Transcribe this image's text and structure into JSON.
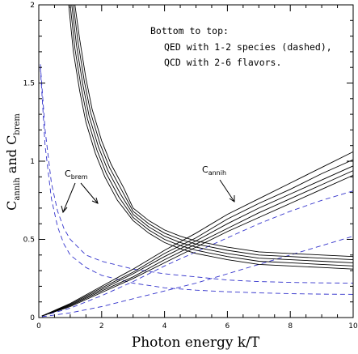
{
  "chart_data": {
    "type": "line",
    "xlabel": "Photon energy k/T",
    "ylabel": {
      "base": "C",
      "sub1": "annih",
      "mid": " and C",
      "sub2": "brem"
    },
    "xlim": [
      0,
      10
    ],
    "ylim": [
      0,
      2
    ],
    "xticks": [
      0,
      2,
      4,
      6,
      8,
      10
    ],
    "yticks": [
      0,
      0.5,
      1,
      1.5,
      2
    ],
    "xtick_labels": [
      "0",
      "2",
      "4",
      "6",
      "8",
      "10"
    ],
    "ytick_labels": [
      "0",
      "0.5",
      "1",
      "1.5",
      "2"
    ],
    "grid": false,
    "notes": [
      "Bottom to top:",
      "QED with 1-2 species (dashed),",
      "QCD with 2-6 flavors."
    ],
    "annotations": [
      {
        "base": "C",
        "sub": "brem",
        "target": "brem curves"
      },
      {
        "base": "C",
        "sub": "annih",
        "target": "annih curves"
      }
    ],
    "colors": {
      "qcd": "#000000",
      "qed": "#3333cc",
      "axes": "#000000"
    },
    "series": [
      {
        "group": "QED brem",
        "style": "dashed",
        "x": [
          0.05,
          0.2,
          0.4,
          0.6,
          0.8,
          1,
          1.5,
          2,
          3,
          4,
          5,
          6,
          7,
          8,
          9,
          10
        ],
        "y": [
          1.62,
          1.2,
          0.86,
          0.68,
          0.57,
          0.5,
          0.4,
          0.36,
          0.31,
          0.28,
          0.26,
          0.24,
          0.23,
          0.225,
          0.222,
          0.22
        ]
      },
      {
        "group": "QED brem",
        "style": "dashed",
        "x": [
          0.05,
          0.2,
          0.4,
          0.6,
          0.8,
          1,
          1.5,
          2,
          3,
          4,
          5,
          6,
          7,
          8,
          9,
          10
        ],
        "y": [
          1.6,
          1.1,
          0.76,
          0.58,
          0.47,
          0.4,
          0.32,
          0.27,
          0.22,
          0.19,
          0.175,
          0.165,
          0.158,
          0.153,
          0.15,
          0.148
        ]
      },
      {
        "group": "QED annih",
        "style": "dashed",
        "x": [
          0.1,
          1,
          2,
          3,
          4,
          5,
          6,
          7,
          8,
          9,
          10
        ],
        "y": [
          0.005,
          0.03,
          0.07,
          0.12,
          0.17,
          0.22,
          0.28,
          0.34,
          0.4,
          0.46,
          0.52
        ]
      },
      {
        "group": "QED annih",
        "style": "dashed",
        "x": [
          0.1,
          1,
          2,
          3,
          4,
          5,
          6,
          7,
          8,
          9,
          10
        ],
        "y": [
          0.01,
          0.06,
          0.14,
          0.23,
          0.33,
          0.42,
          0.51,
          0.6,
          0.68,
          0.75,
          0.81
        ]
      },
      {
        "group": "QCD brem",
        "style": "solid",
        "x": [
          0.95,
          1.1,
          1.3,
          1.5,
          1.8,
          2.1,
          2.5,
          3,
          3.5,
          4,
          4.5,
          5,
          6,
          7,
          8,
          9,
          10
        ],
        "y": [
          2,
          1.7,
          1.45,
          1.25,
          1.05,
          0.9,
          0.75,
          0.62,
          0.54,
          0.48,
          0.44,
          0.41,
          0.37,
          0.34,
          0.33,
          0.32,
          0.31
        ]
      },
      {
        "group": "QCD brem",
        "style": "solid",
        "x": [
          1.0,
          1.15,
          1.35,
          1.55,
          1.85,
          2.15,
          2.55,
          3,
          3.5,
          4,
          4.5,
          5,
          6,
          7,
          8,
          9,
          10
        ],
        "y": [
          2,
          1.72,
          1.47,
          1.27,
          1.07,
          0.92,
          0.77,
          0.64,
          0.56,
          0.5,
          0.46,
          0.43,
          0.39,
          0.36,
          0.35,
          0.34,
          0.33
        ]
      },
      {
        "group": "QCD brem",
        "style": "solid",
        "x": [
          1.05,
          1.2,
          1.4,
          1.6,
          1.9,
          2.2,
          2.6,
          3,
          3.5,
          4,
          4.5,
          5,
          6,
          7,
          8,
          9,
          10
        ],
        "y": [
          2,
          1.74,
          1.49,
          1.29,
          1.09,
          0.94,
          0.79,
          0.66,
          0.58,
          0.52,
          0.48,
          0.45,
          0.41,
          0.38,
          0.37,
          0.36,
          0.35
        ]
      },
      {
        "group": "QCD brem",
        "style": "solid",
        "x": [
          1.1,
          1.25,
          1.45,
          1.65,
          1.95,
          2.25,
          2.65,
          3,
          3.5,
          4,
          4.5,
          5,
          6,
          7,
          8,
          9,
          10
        ],
        "y": [
          2,
          1.76,
          1.51,
          1.31,
          1.11,
          0.96,
          0.81,
          0.68,
          0.6,
          0.54,
          0.5,
          0.47,
          0.43,
          0.4,
          0.39,
          0.38,
          0.37
        ]
      },
      {
        "group": "QCD brem",
        "style": "solid",
        "x": [
          1.15,
          1.3,
          1.5,
          1.7,
          2.0,
          2.3,
          2.7,
          3,
          3.5,
          4,
          4.5,
          5,
          6,
          7,
          8,
          9,
          10
        ],
        "y": [
          2,
          1.78,
          1.53,
          1.33,
          1.13,
          0.98,
          0.83,
          0.7,
          0.62,
          0.56,
          0.52,
          0.49,
          0.45,
          0.42,
          0.41,
          0.4,
          0.39
        ]
      },
      {
        "group": "QCD annih",
        "style": "solid",
        "x": [
          0.1,
          1,
          2,
          3,
          4,
          5,
          6,
          7,
          8,
          9,
          10
        ],
        "y": [
          0.01,
          0.07,
          0.16,
          0.25,
          0.35,
          0.45,
          0.55,
          0.64,
          0.73,
          0.82,
          0.91
        ]
      },
      {
        "group": "QCD annih",
        "style": "solid",
        "x": [
          0.1,
          1,
          2,
          3,
          4,
          5,
          6,
          7,
          8,
          9,
          10
        ],
        "y": [
          0.01,
          0.075,
          0.17,
          0.26,
          0.37,
          0.47,
          0.57,
          0.67,
          0.76,
          0.85,
          0.94
        ]
      },
      {
        "group": "QCD annih",
        "style": "solid",
        "x": [
          0.1,
          1,
          2,
          3,
          4,
          5,
          6,
          7,
          8,
          9,
          10
        ],
        "y": [
          0.01,
          0.08,
          0.18,
          0.28,
          0.39,
          0.49,
          0.6,
          0.7,
          0.79,
          0.88,
          0.97
        ]
      },
      {
        "group": "QCD annih",
        "style": "solid",
        "x": [
          0.1,
          1,
          2,
          3,
          4,
          5,
          6,
          7,
          8,
          9,
          10
        ],
        "y": [
          0.01,
          0.085,
          0.19,
          0.29,
          0.41,
          0.51,
          0.63,
          0.73,
          0.82,
          0.92,
          1.01
        ]
      },
      {
        "group": "QCD annih",
        "style": "solid",
        "x": [
          0.1,
          1,
          2,
          3,
          4,
          5,
          6,
          7,
          8,
          9,
          10
        ],
        "y": [
          0.01,
          0.09,
          0.2,
          0.31,
          0.43,
          0.54,
          0.66,
          0.76,
          0.86,
          0.96,
          1.06
        ]
      }
    ]
  }
}
